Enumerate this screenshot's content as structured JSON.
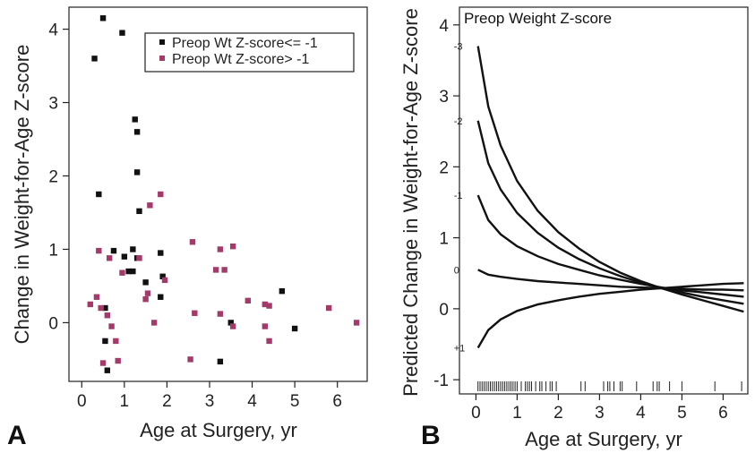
{
  "chart_data": [
    {
      "panel": "A",
      "type": "scatter",
      "xlabel": "Age at Surgery, yr",
      "ylabel": "Change in Weight-for-Age Z-score",
      "xlim": [
        -0.3,
        6.7
      ],
      "ylim": [
        -0.8,
        4.3
      ],
      "xticks": [
        0,
        1,
        2,
        3,
        4,
        5,
        6
      ],
      "yticks": [
        0,
        1,
        2,
        3,
        4
      ],
      "legend_position": "top-right",
      "series": [
        {
          "name": "Preop Wt Z-score<= -1",
          "color": "#111111",
          "points": [
            [
              0.3,
              3.6
            ],
            [
              0.5,
              4.15
            ],
            [
              0.95,
              3.95
            ],
            [
              0.4,
              1.75
            ],
            [
              1.25,
              2.77
            ],
            [
              1.3,
              2.6
            ],
            [
              1.3,
              2.05
            ],
            [
              1.35,
              1.52
            ],
            [
              0.75,
              0.98
            ],
            [
              1.2,
              1.0
            ],
            [
              1.0,
              0.9
            ],
            [
              1.3,
              0.88
            ],
            [
              1.2,
              0.7
            ],
            [
              1.1,
              0.7
            ],
            [
              1.85,
              0.95
            ],
            [
              1.9,
              0.63
            ],
            [
              1.5,
              0.55
            ],
            [
              1.85,
              0.35
            ],
            [
              0.55,
              0.2
            ],
            [
              0.55,
              -0.25
            ],
            [
              0.6,
              -0.65
            ],
            [
              3.25,
              -0.53
            ],
            [
              3.5,
              0.0
            ],
            [
              4.7,
              0.43
            ],
            [
              5.0,
              -0.08
            ]
          ]
        },
        {
          "name": "Preop Wt Z-score> -1",
          "color": "#a33a6a",
          "points": [
            [
              0.4,
              0.98
            ],
            [
              0.65,
              0.88
            ],
            [
              0.95,
              0.68
            ],
            [
              1.35,
              0.88
            ],
            [
              1.6,
              1.6
            ],
            [
              1.85,
              1.75
            ],
            [
              1.55,
              0.4
            ],
            [
              1.5,
              0.32
            ],
            [
              1.7,
              0.0
            ],
            [
              1.95,
              0.58
            ],
            [
              0.2,
              0.25
            ],
            [
              0.35,
              0.35
            ],
            [
              0.45,
              0.2
            ],
            [
              0.6,
              0.1
            ],
            [
              0.7,
              -0.05
            ],
            [
              0.8,
              -0.25
            ],
            [
              0.5,
              -0.55
            ],
            [
              0.85,
              -0.52
            ],
            [
              2.55,
              -0.5
            ],
            [
              2.6,
              1.1
            ],
            [
              2.65,
              0.13
            ],
            [
              3.15,
              0.72
            ],
            [
              3.25,
              1.0
            ],
            [
              3.35,
              0.72
            ],
            [
              3.25,
              0.12
            ],
            [
              3.55,
              1.04
            ],
            [
              3.55,
              -0.05
            ],
            [
              3.9,
              0.3
            ],
            [
              4.3,
              0.25
            ],
            [
              4.4,
              0.23
            ],
            [
              4.3,
              -0.05
            ],
            [
              4.4,
              -0.25
            ],
            [
              5.8,
              0.2
            ],
            [
              6.45,
              0.0
            ]
          ]
        }
      ]
    },
    {
      "panel": "B",
      "type": "line",
      "title": "Preop Weight Z-score",
      "xlabel": "Age at Surgery, yr",
      "ylabel": "Predicted Change in Weight-for-Age Z-score",
      "xlim": [
        -0.4,
        6.6
      ],
      "ylim": [
        -1.2,
        4.25
      ],
      "xticks": [
        0,
        1,
        2,
        3,
        4,
        5,
        6
      ],
      "yticks": [
        -1,
        0,
        1,
        2,
        3,
        4
      ],
      "series": [
        {
          "name": "-3",
          "color": "#111111",
          "x": [
            0.05,
            0.3,
            0.6,
            1.0,
            1.5,
            2.0,
            2.5,
            3.0,
            3.5,
            4.0,
            4.5,
            5.0,
            5.5,
            6.0,
            6.5
          ],
          "y": [
            3.7,
            2.85,
            2.3,
            1.8,
            1.38,
            1.08,
            0.85,
            0.66,
            0.51,
            0.39,
            0.29,
            0.2,
            0.12,
            0.04,
            -0.04
          ]
        },
        {
          "name": "-2",
          "color": "#111111",
          "x": [
            0.05,
            0.3,
            0.6,
            1.0,
            1.5,
            2.0,
            2.5,
            3.0,
            3.5,
            4.0,
            4.5,
            5.0,
            5.5,
            6.0,
            6.5
          ],
          "y": [
            2.65,
            2.05,
            1.68,
            1.35,
            1.07,
            0.86,
            0.7,
            0.57,
            0.46,
            0.37,
            0.29,
            0.23,
            0.17,
            0.12,
            0.07
          ]
        },
        {
          "name": "-1",
          "color": "#111111",
          "x": [
            0.05,
            0.3,
            0.6,
            1.0,
            1.5,
            2.0,
            2.5,
            3.0,
            3.5,
            4.0,
            4.5,
            5.0,
            5.5,
            6.0,
            6.5
          ],
          "y": [
            1.6,
            1.25,
            1.05,
            0.88,
            0.74,
            0.63,
            0.55,
            0.47,
            0.41,
            0.35,
            0.3,
            0.26,
            0.23,
            0.2,
            0.17
          ]
        },
        {
          "name": "0",
          "color": "#111111",
          "x": [
            0.05,
            0.3,
            0.6,
            1.0,
            1.5,
            2.0,
            2.5,
            3.0,
            3.5,
            4.0,
            4.5,
            5.0,
            5.5,
            6.0,
            6.5
          ],
          "y": [
            0.55,
            0.48,
            0.45,
            0.42,
            0.39,
            0.37,
            0.35,
            0.33,
            0.31,
            0.3,
            0.29,
            0.28,
            0.27,
            0.27,
            0.26
          ]
        },
        {
          "name": "+1",
          "color": "#111111",
          "x": [
            0.05,
            0.3,
            0.6,
            1.0,
            1.5,
            2.0,
            2.5,
            3.0,
            3.5,
            4.0,
            4.5,
            5.0,
            5.5,
            6.0,
            6.5
          ],
          "y": [
            -0.55,
            -0.3,
            -0.15,
            -0.03,
            0.06,
            0.12,
            0.17,
            0.21,
            0.24,
            0.27,
            0.29,
            0.31,
            0.33,
            0.35,
            0.36
          ]
        }
      ],
      "rug_x": [
        0.05,
        0.1,
        0.15,
        0.2,
        0.25,
        0.3,
        0.35,
        0.4,
        0.45,
        0.5,
        0.55,
        0.6,
        0.65,
        0.7,
        0.75,
        0.8,
        0.85,
        0.9,
        0.95,
        1.0,
        1.1,
        1.2,
        1.25,
        1.3,
        1.35,
        1.45,
        1.55,
        1.6,
        1.7,
        1.8,
        1.85,
        1.95,
        2.55,
        2.65,
        3.1,
        3.2,
        3.25,
        3.35,
        3.5,
        3.55,
        3.9,
        4.3,
        4.4,
        4.45,
        4.7,
        5.0,
        5.8,
        6.45
      ]
    }
  ]
}
